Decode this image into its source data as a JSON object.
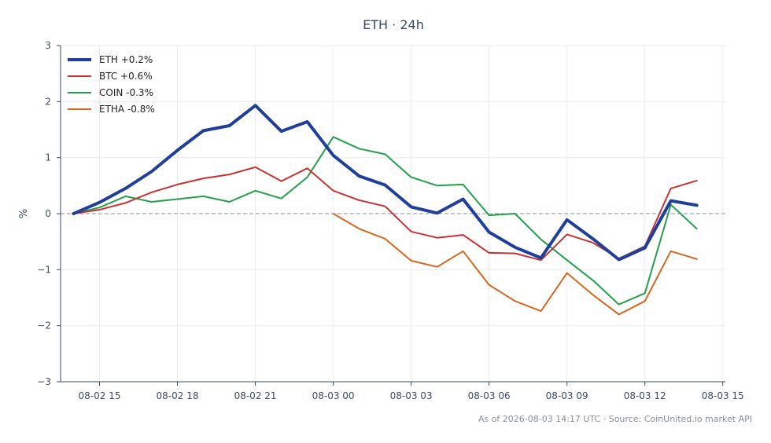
{
  "chart_data": {
    "type": "line",
    "title": "ETH · 24h",
    "xlabel": "",
    "ylabel": "%",
    "ylim": [
      -3,
      3
    ],
    "yticks": [
      -3,
      -2,
      -1,
      0,
      1,
      2,
      3
    ],
    "ytick_labels": [
      "−3",
      "−2",
      "−1",
      "0",
      "1",
      "2",
      "3"
    ],
    "x_hours_range": [
      13.5,
      39.1
    ],
    "xticks": [
      {
        "label": "08-02 15",
        "hour": 15
      },
      {
        "label": "08-02 18",
        "hour": 18
      },
      {
        "label": "08-02 21",
        "hour": 21
      },
      {
        "label": "08-03 00",
        "hour": 24
      },
      {
        "label": "08-03 03",
        "hour": 27
      },
      {
        "label": "08-03 06",
        "hour": 30
      },
      {
        "label": "08-03 09",
        "hour": 33
      },
      {
        "label": "08-03 12",
        "hour": 36
      },
      {
        "label": "08-03 15",
        "hour": 39
      }
    ],
    "grid": true,
    "zero_line": true,
    "legend_position": "top-left",
    "series": [
      {
        "name": "ETH +0.2%",
        "color": "#1f3f9a",
        "width": 4,
        "x": [
          14,
          15,
          16,
          17,
          18,
          19,
          20,
          21,
          22,
          23,
          24,
          25,
          26,
          27,
          28,
          29,
          30,
          31,
          32,
          33,
          34,
          35,
          36,
          37,
          38
        ],
        "values": [
          0.0,
          0.2,
          0.45,
          0.75,
          1.13,
          1.48,
          1.57,
          1.93,
          1.47,
          1.64,
          1.04,
          0.67,
          0.51,
          0.12,
          0.01,
          0.26,
          -0.33,
          -0.6,
          -0.79,
          -0.11,
          -0.45,
          -0.82,
          -0.61,
          0.23,
          0.15
        ]
      },
      {
        "name": "BTC +0.6%",
        "color": "#c83232",
        "width": 2,
        "x": [
          14,
          15,
          16,
          17,
          18,
          19,
          20,
          21,
          22,
          23,
          24,
          25,
          26,
          27,
          28,
          29,
          30,
          31,
          32,
          33,
          34,
          35,
          36,
          37,
          38
        ],
        "values": [
          0.0,
          0.07,
          0.19,
          0.38,
          0.52,
          0.63,
          0.7,
          0.83,
          0.58,
          0.81,
          0.41,
          0.24,
          0.13,
          -0.32,
          -0.43,
          -0.38,
          -0.7,
          -0.71,
          -0.83,
          -0.37,
          -0.52,
          -0.8,
          -0.58,
          0.45,
          0.59
        ]
      },
      {
        "name": "COIN -0.3%",
        "color": "#24a04a",
        "width": 2,
        "x": [
          14,
          15,
          16,
          17,
          18,
          19,
          20,
          21,
          22,
          23,
          24,
          25,
          26,
          27,
          28,
          29,
          30,
          31,
          32,
          33,
          34,
          35,
          36,
          37,
          38
        ],
        "values": [
          0.0,
          0.11,
          0.31,
          0.21,
          0.26,
          0.31,
          0.21,
          0.41,
          0.27,
          0.65,
          1.37,
          1.16,
          1.06,
          0.65,
          0.5,
          0.52,
          -0.03,
          0.0,
          -0.46,
          -0.83,
          -1.19,
          -1.62,
          -1.42,
          0.16,
          -0.27
        ]
      },
      {
        "name": "ETHA -0.8%",
        "color": "#d7661e",
        "width": 2,
        "x": [
          24,
          25,
          26,
          27,
          28,
          29,
          30,
          31,
          32,
          33,
          34,
          35,
          36,
          37,
          38
        ],
        "values": [
          0.0,
          -0.27,
          -0.45,
          -0.84,
          -0.95,
          -0.67,
          -1.27,
          -1.56,
          -1.74,
          -1.06,
          -1.45,
          -1.8,
          -1.56,
          -0.67,
          -0.81
        ]
      }
    ]
  },
  "footer": {
    "as_of": "As of 2026-08-03 14:17 UTC",
    "separator": " · ",
    "source": "Source: CoinUnited.io market API"
  }
}
